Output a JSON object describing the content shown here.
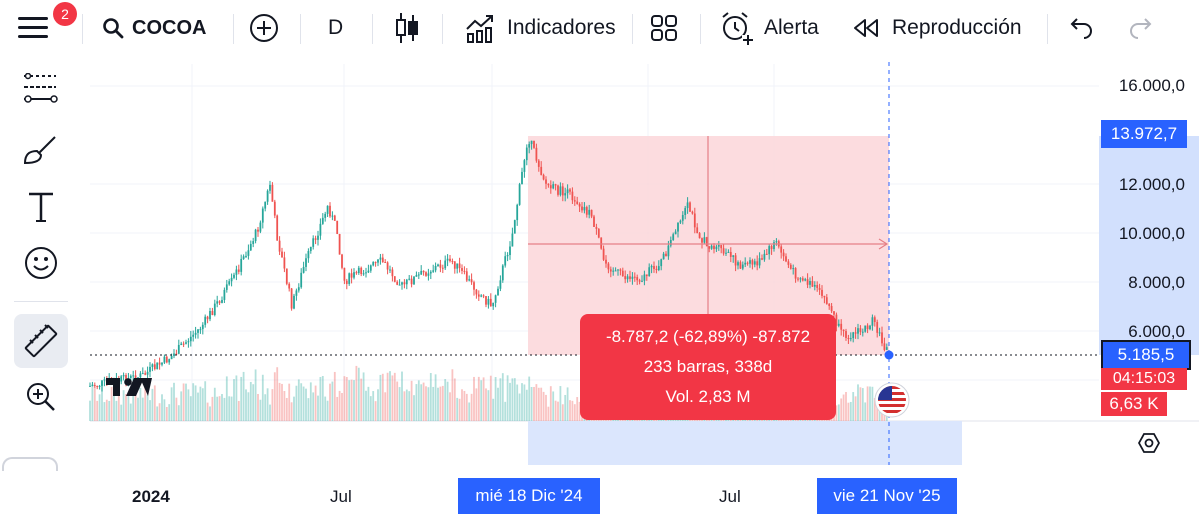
{
  "toolbar": {
    "notifications_count": "2",
    "symbol": "COCOA",
    "interval": "D",
    "indicators_label": "Indicadores",
    "alert_label": "Alerta",
    "replay_label": "Reproducción"
  },
  "left_tools": [
    "crosshair-lines-tool",
    "brush-tool",
    "text-tool",
    "emoji-tool",
    "ruler-tool",
    "zoom-in-tool"
  ],
  "chart": {
    "price_axis": {
      "ticks": [
        "16.000,0",
        "12.000,0",
        "10.000,0",
        "8.000,0",
        "6.000,0"
      ],
      "range_top_label": "13.972,7",
      "current_price_label": "5.185,5",
      "countdown_label": "04:15:03",
      "volume_label": "6,63 K"
    },
    "time_axis": {
      "ticks": [
        "2024",
        "Jul",
        "Jul"
      ],
      "range_start_label": "mié 18 Dic '24",
      "range_end_label": "vie 21 Nov '25"
    },
    "measure": {
      "change_line": "-8.787,2 (-62,89%) -87.872",
      "bars_line": "233 barras, 338d",
      "volume_line": "Vol. 2,83 M"
    },
    "colors": {
      "up": "#26a69a",
      "down": "#ef5350",
      "measure_fill": "#fcd6d9",
      "measure_box": "#f23645",
      "accent": "#2962ff"
    }
  }
}
